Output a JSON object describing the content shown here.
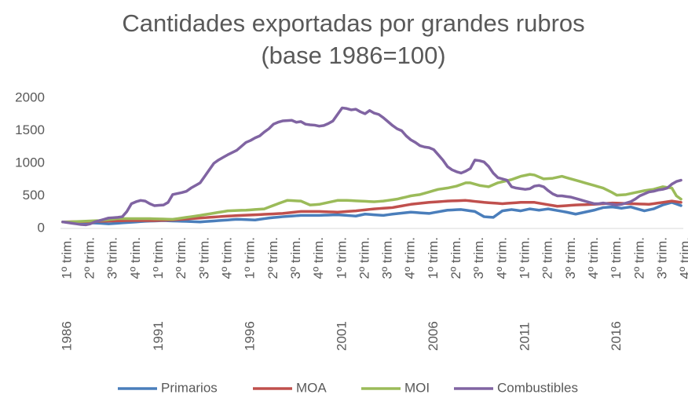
{
  "chart_data": {
    "type": "line",
    "title": [
      "Cantidades exportadas por grandes rubros",
      "(base 1986=100)"
    ],
    "categories": [
      "1º trim.",
      null,
      null,
      null,
      null,
      "2º trim.",
      null,
      null,
      null,
      null,
      "3º trim.",
      null,
      null,
      null,
      null,
      "4º trim.",
      null,
      null,
      null,
      null,
      "1º trim.",
      null,
      null,
      null,
      null,
      "2º trim.",
      null,
      null,
      null,
      null,
      "3º trim.",
      null,
      null,
      null,
      null,
      "4º trim.",
      null,
      null,
      null,
      null,
      "1º trim.",
      null,
      null,
      null,
      null,
      "2º trim.",
      null,
      null,
      null,
      null,
      "3º trim.",
      null,
      null,
      null,
      null,
      "4º trim.",
      null,
      null,
      null,
      null,
      "1º trim.",
      null,
      null,
      null,
      null,
      "2º trim.",
      null,
      null,
      null,
      null,
      "3º trim.",
      null,
      null,
      null,
      null,
      "4º trim.",
      null,
      null,
      null,
      null,
      "1º trim.",
      null,
      null,
      null,
      null,
      "2º trim.",
      null,
      null,
      null,
      null,
      "3º trim.",
      null,
      null,
      null,
      null,
      "4º trim.",
      null,
      null,
      null,
      null,
      "1º trim.",
      null,
      null,
      null,
      null,
      "2º trim.",
      null,
      null,
      null,
      null,
      "3º trim.",
      null,
      null,
      null,
      null,
      "4º trim.",
      null,
      null,
      null,
      null,
      "1º trim.",
      null,
      null,
      null,
      null,
      "2º trim.",
      null,
      null,
      null,
      null,
      "3º trim.",
      null,
      null,
      null,
      null,
      "4º trim."
    ],
    "years": [
      "1986",
      null,
      null,
      null,
      null,
      null,
      null,
      null,
      null,
      null,
      null,
      null,
      null,
      null,
      null,
      null,
      null,
      null,
      null,
      null,
      "1991",
      null,
      null,
      null,
      null,
      null,
      null,
      null,
      null,
      null,
      null,
      null,
      null,
      null,
      null,
      null,
      null,
      null,
      null,
      null,
      "1996",
      null,
      null,
      null,
      null,
      null,
      null,
      null,
      null,
      null,
      null,
      null,
      null,
      null,
      null,
      null,
      null,
      null,
      null,
      null,
      "2001",
      null,
      null,
      null,
      null,
      null,
      null,
      null,
      null,
      null,
      null,
      null,
      null,
      null,
      null,
      null,
      null,
      null,
      null,
      null,
      "2006",
      null,
      null,
      null,
      null,
      null,
      null,
      null,
      null,
      null,
      null,
      null,
      null,
      null,
      null,
      null,
      null,
      null,
      null,
      null,
      "2011",
      null,
      null,
      null,
      null,
      null,
      null,
      null,
      null,
      null,
      null,
      null,
      null,
      null,
      null,
      null,
      null,
      null,
      null,
      null,
      "2016",
      null,
      null,
      null,
      null,
      null,
      null,
      null,
      null,
      null,
      null,
      null,
      null,
      null,
      null,
      null
    ],
    "ylim": [
      0,
      2000
    ],
    "yticks": [
      0,
      500,
      1000,
      1500,
      2000
    ],
    "grid": false,
    "series": [
      {
        "name": "Primarios",
        "color": "#4a7ebb",
        "values": [
          100,
          98,
          95,
          93,
          90,
          88,
          85,
          83,
          80,
          75,
          70,
          75,
          80,
          85,
          90,
          95,
          100,
          105,
          110,
          113,
          115,
          118,
          120,
          118,
          115,
          113,
          110,
          108,
          105,
          103,
          100,
          105,
          110,
          115,
          120,
          125,
          130,
          135,
          140,
          138,
          135,
          133,
          130,
          140,
          150,
          160,
          167,
          173,
          180,
          185,
          190,
          195,
          200,
          200,
          200,
          200,
          200,
          203,
          205,
          208,
          210,
          205,
          200,
          195,
          190,
          205,
          220,
          215,
          210,
          205,
          200,
          210,
          220,
          228,
          235,
          243,
          250,
          245,
          240,
          235,
          230,
          243,
          255,
          268,
          280,
          283,
          287,
          290,
          280,
          270,
          260,
          220,
          180,
          175,
          170,
          220,
          270,
          280,
          290,
          280,
          270,
          285,
          300,
          290,
          280,
          290,
          300,
          288,
          275,
          263,
          250,
          235,
          220,
          235,
          250,
          265,
          280,
          300,
          320,
          325,
          330,
          320,
          310,
          320,
          330,
          310,
          290,
          270,
          285,
          300,
          330,
          360,
          380,
          400,
          375,
          350
        ]
      },
      {
        "name": "MOA",
        "color": "#c0504d",
        "values": [
          100,
          101,
          102,
          104,
          105,
          106,
          107,
          109,
          110,
          112,
          113,
          115,
          117,
          118,
          120,
          120,
          120,
          120,
          120,
          120,
          120,
          123,
          125,
          128,
          130,
          135,
          140,
          145,
          150,
          155,
          160,
          165,
          170,
          175,
          180,
          185,
          190,
          193,
          197,
          200,
          203,
          207,
          210,
          213,
          217,
          220,
          223,
          227,
          230,
          238,
          245,
          253,
          260,
          260,
          260,
          260,
          260,
          258,
          255,
          253,
          250,
          255,
          260,
          265,
          270,
          278,
          285,
          293,
          300,
          305,
          310,
          315,
          320,
          333,
          345,
          358,
          370,
          378,
          385,
          393,
          400,
          405,
          410,
          415,
          420,
          423,
          425,
          428,
          430,
          423,
          415,
          408,
          400,
          395,
          390,
          385,
          380,
          385,
          390,
          395,
          400,
          400,
          400,
          400,
          388,
          376,
          364,
          352,
          340,
          345,
          350,
          355,
          360,
          363,
          365,
          368,
          370,
          375,
          380,
          385,
          390,
          388,
          385,
          383,
          380,
          378,
          375,
          373,
          370,
          380,
          390,
          400,
          410,
          420,
          410,
          400
        ]
      },
      {
        "name": "MOI",
        "color": "#9bbb59",
        "values": [
          100,
          100,
          102,
          105,
          108,
          112,
          115,
          118,
          120,
          128,
          135,
          143,
          150,
          150,
          150,
          150,
          150,
          150,
          150,
          150,
          148,
          146,
          144,
          142,
          140,
          150,
          160,
          170,
          180,
          190,
          200,
          212,
          223,
          235,
          247,
          258,
          270,
          272,
          275,
          278,
          280,
          285,
          290,
          295,
          300,
          327,
          353,
          380,
          405,
          430,
          427,
          423,
          420,
          390,
          360,
          365,
          370,
          385,
          400,
          415,
          430,
          430,
          430,
          427,
          423,
          420,
          417,
          413,
          410,
          415,
          420,
          430,
          440,
          450,
          467,
          483,
          500,
          510,
          520,
          540,
          560,
          580,
          600,
          610,
          620,
          635,
          650,
          675,
          700,
          700,
          680,
          660,
          650,
          640,
          670,
          700,
          717,
          733,
          750,
          775,
          800,
          815,
          830,
          820,
          790,
          760,
          765,
          770,
          785,
          800,
          780,
          760,
          740,
          720,
          700,
          680,
          660,
          640,
          620,
          585,
          550,
          510,
          515,
          520,
          535,
          550,
          565,
          580,
          590,
          600,
          620,
          640,
          630,
          620,
          500,
          450
        ]
      },
      {
        "name": "Combustibles",
        "color": "#8064a2",
        "values": [
          100,
          90,
          80,
          70,
          60,
          55,
          70,
          100,
          120,
          140,
          160,
          165,
          170,
          180,
          260,
          380,
          410,
          430,
          420,
          380,
          350,
          355,
          360,
          400,
          520,
          535,
          550,
          570,
          620,
          660,
          700,
          800,
          900,
          1000,
          1050,
          1090,
          1130,
          1165,
          1200,
          1260,
          1320,
          1350,
          1390,
          1420,
          1480,
          1530,
          1600,
          1630,
          1650,
          1655,
          1660,
          1630,
          1640,
          1600,
          1590,
          1585,
          1570,
          1580,
          1610,
          1650,
          1750,
          1850,
          1840,
          1820,
          1830,
          1790,
          1760,
          1810,
          1770,
          1750,
          1700,
          1640,
          1580,
          1530,
          1500,
          1420,
          1360,
          1320,
          1270,
          1250,
          1240,
          1210,
          1130,
          1050,
          950,
          900,
          870,
          850,
          880,
          920,
          1050,
          1040,
          1020,
          950,
          850,
          780,
          760,
          740,
          640,
          620,
          610,
          600,
          610,
          650,
          660,
          640,
          580,
          530,
          500,
          500,
          490,
          480,
          460,
          440,
          420,
          400,
          380,
          380,
          390,
          380,
          370,
          360,
          370,
          390,
          410,
          450,
          500,
          530,
          560,
          570,
          590,
          600,
          620,
          680,
          720,
          740
        ]
      }
    ]
  }
}
